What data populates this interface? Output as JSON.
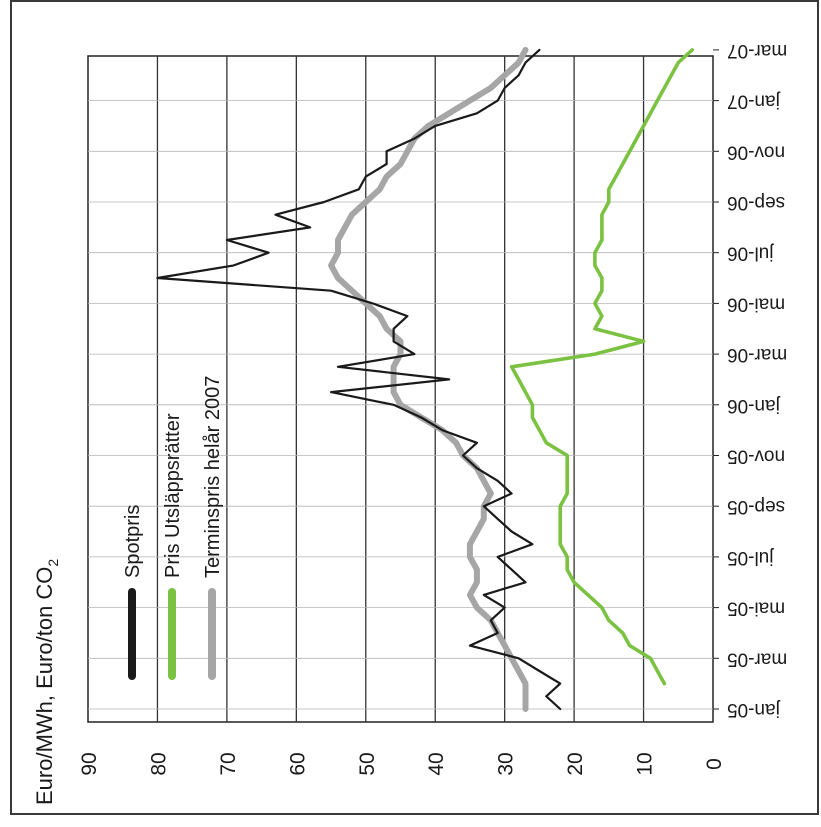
{
  "chart_data": {
    "type": "line",
    "ylabel": "Euro/MWh, Euro/ton CO",
    "ylabel_sub": "2",
    "ylim": [
      0,
      90
    ],
    "y_ticks": [
      "90",
      "80",
      "70",
      "60",
      "50",
      "40",
      "30",
      "20",
      "10",
      "0"
    ],
    "x_ticks": [
      "jan-05",
      "mar-05",
      "mai-05",
      "jul-05",
      "sep-05",
      "nov-05",
      "jan-06",
      "mar-06",
      "mai-06",
      "jul-06",
      "sep-06",
      "nov-06",
      "jan-07",
      "mar-07"
    ],
    "grid": true,
    "legend_position": "inside-top-left",
    "series": [
      {
        "name": "Spotpris",
        "color": "#1a1a1a",
        "x": [
          0,
          0.5,
          1,
          1.5,
          2,
          2.5,
          3,
          3.5,
          4,
          4.5,
          5,
          5.5,
          6,
          6.5,
          7,
          7.5,
          8,
          8.5,
          9,
          9.5,
          10,
          10.5,
          11,
          11.5,
          12,
          12.5,
          13,
          13.5,
          14,
          14.5,
          15,
          15.5,
          16,
          16.5,
          17,
          17.5,
          18,
          18.5,
          19,
          19.5,
          20,
          20.5,
          21,
          21.5,
          22,
          22.5,
          23,
          23.5,
          24,
          24.5,
          25,
          25.5,
          26
        ],
        "values": [
          22,
          24,
          22,
          25,
          28,
          35,
          31,
          32,
          30,
          33,
          27,
          29,
          31,
          26,
          29,
          31,
          33,
          29,
          31,
          34,
          36,
          34,
          39,
          42,
          46,
          55,
          38,
          54,
          43,
          46,
          46,
          44,
          49,
          55,
          80,
          69,
          64,
          70,
          58,
          63,
          56,
          51,
          50,
          47,
          47,
          43,
          40,
          34,
          31,
          30,
          28,
          27,
          25
        ]
      },
      {
        "name": "Pris Utsläppsrätter",
        "color": "#7bc142",
        "x": [
          1,
          1.5,
          2,
          2.5,
          3,
          3.5,
          4,
          4.5,
          5,
          5.5,
          6,
          6.5,
          7,
          7.5,
          8,
          8.5,
          9,
          9.5,
          10,
          10.5,
          11,
          11.5,
          12,
          12.5,
          13,
          13.5,
          14,
          14.5,
          15,
          15.5,
          16,
          16.5,
          17,
          17.5,
          18,
          18.5,
          19,
          19.5,
          20,
          20.5,
          21,
          21.5,
          22,
          22.5,
          23,
          23.5,
          24,
          24.5,
          25,
          25.5,
          26
        ],
        "values": [
          7,
          8,
          9,
          12,
          13,
          15,
          16,
          18,
          20,
          21,
          21,
          22,
          22,
          22,
          22,
          21,
          21,
          21,
          21,
          24,
          25,
          26,
          26,
          27,
          28,
          29,
          17,
          10,
          17,
          16,
          17,
          16,
          16,
          17,
          17,
          16,
          16,
          16,
          15,
          15,
          14,
          13,
          12,
          11,
          10,
          9,
          8,
          7,
          6,
          5,
          3
        ]
      },
      {
        "name": "Terminspris helår 2007",
        "color": "#a6a6a6",
        "x": [
          0,
          0.5,
          1,
          1.5,
          2,
          2.5,
          3,
          3.5,
          4,
          4.5,
          5,
          5.5,
          6,
          6.5,
          7,
          7.5,
          8,
          8.5,
          9,
          9.5,
          10,
          10.5,
          11,
          11.5,
          12,
          12.5,
          13,
          13.5,
          14,
          14.5,
          15,
          15.5,
          16,
          16.5,
          17,
          17.5,
          18,
          18.5,
          19,
          19.5,
          20,
          20.5,
          21,
          21.5,
          22,
          22.5,
          23,
          23.5,
          24,
          24.5,
          25,
          25.5,
          26
        ],
        "values": [
          27,
          27,
          27,
          28,
          29,
          30,
          31,
          32,
          34,
          35,
          34,
          34,
          35,
          35,
          34,
          33,
          33,
          32,
          33,
          34,
          36,
          37,
          39,
          42,
          45,
          46,
          46,
          46,
          45,
          45,
          47,
          48,
          50,
          52,
          54,
          55,
          54,
          54,
          53,
          52,
          50,
          48,
          47,
          45,
          44,
          43,
          41,
          38,
          35,
          32,
          30,
          28,
          27
        ]
      }
    ]
  }
}
